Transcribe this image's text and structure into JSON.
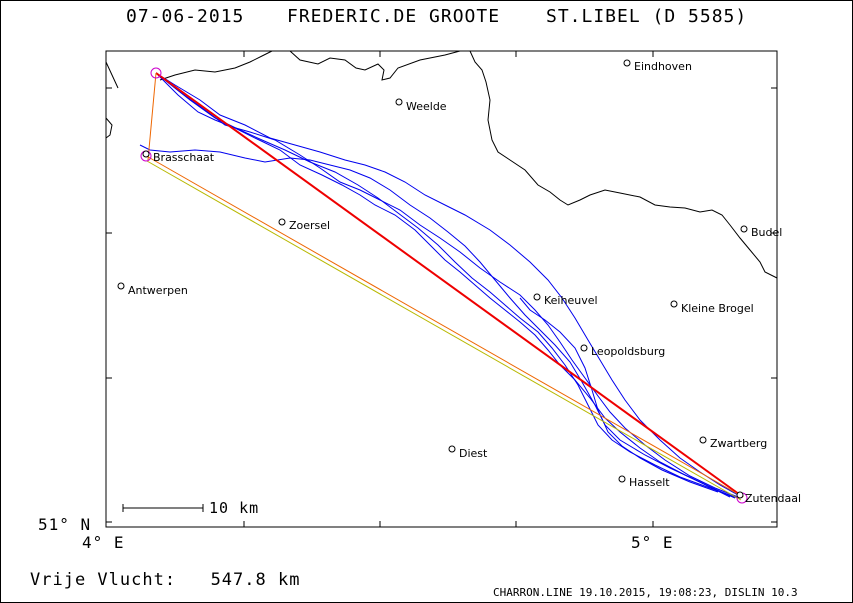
{
  "header": {
    "date": "07-06-2015",
    "pilot": "FREDERIC.DE GROOTE",
    "glider": "ST.LIBEL (D 5585)"
  },
  "axes": {
    "lat_label": "51° N",
    "lon_left_label": "4° E",
    "lon_right_label": "5° E"
  },
  "scale_bar": {
    "label": "10 km"
  },
  "footer": {
    "distance_label": "Vrije Vlucht:",
    "distance_value": "547.8 km",
    "info": "CHARRON.LINE 19.10.2015, 19:08:23, DISLIN 10.3"
  },
  "colors": {
    "track": "#0000ee",
    "task_red": "#ee0000",
    "task_orange": "#ee6600",
    "task_olive": "#b8b800",
    "turnpoint": "#cc00cc",
    "border": "#000000"
  },
  "places": [
    {
      "name": "Eindhoven",
      "lon": 5.48,
      "lat": 51.44
    },
    {
      "name": "Weelde",
      "lon": 4.96,
      "lat": 51.41
    },
    {
      "name": "Brasschaat",
      "lon": 4.49,
      "lat": 51.29
    },
    {
      "name": "Zoersel",
      "lon": 4.71,
      "lat": 51.27
    },
    {
      "name": "Budel",
      "lon": 5.58,
      "lat": 51.27
    },
    {
      "name": "Antwerpen",
      "lon": 4.4,
      "lat": 51.22
    },
    {
      "name": "Keiheuvel",
      "lon": 5.18,
      "lat": 51.17
    },
    {
      "name": "Kleine Brogel",
      "lon": 5.45,
      "lat": 51.17
    },
    {
      "name": "Leopoldsburg",
      "lon": 5.26,
      "lat": 51.12
    },
    {
      "name": "Zwartberg",
      "lon": 5.53,
      "lat": 51.01
    },
    {
      "name": "Diest",
      "lon": 5.05,
      "lat": 50.99
    },
    {
      "name": "Hasselt",
      "lon": 5.34,
      "lat": 50.93
    },
    {
      "name": "Zutendaal",
      "lon": 5.57,
      "lat": 50.93
    }
  ],
  "turnpoints": [
    {
      "lon": 4.52,
      "lat": 51.45
    },
    {
      "lon": 4.49,
      "lat": 51.28
    },
    {
      "lon": 5.58,
      "lat": 50.93
    }
  ]
}
